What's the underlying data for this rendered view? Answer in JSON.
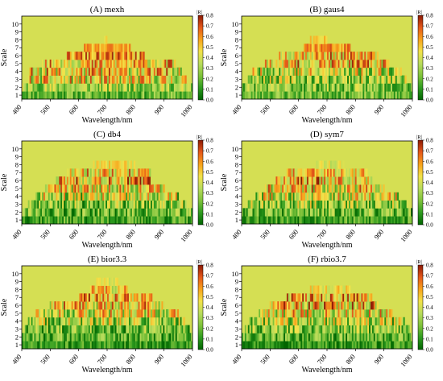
{
  "figure": {
    "colors": {
      "colormap": [
        "#006400",
        "#2e9b1f",
        "#7fc23a",
        "#b8dc5c",
        "#f2e24a",
        "#f7a21b",
        "#e4571a",
        "#8b1a05"
      ],
      "background_level": 0.4
    }
  },
  "chart_data": [
    {
      "type": "heatmap",
      "title": "(A)  mexh",
      "xlabel": "Wavelength/nm",
      "ylabel": "Scale",
      "colorbar_label": "|R|",
      "x_range": [
        400,
        1000
      ],
      "x_ticks": [
        "400",
        "500",
        "600",
        "700",
        "800",
        "900",
        "1000"
      ],
      "y_ticks": [
        "1",
        "2",
        "3",
        "4",
        "5",
        "6",
        "7",
        "8",
        "9",
        "10"
      ],
      "colorbar_ticks": [
        "0.0",
        "0.1",
        "0.2",
        "0.3",
        "0.4",
        "0.5",
        "0.6",
        "0.7",
        "0.8"
      ],
      "colorbar_range": [
        0,
        0.8
      ],
      "row_extent": [
        [
          400,
          1000
        ],
        [
          400,
          1000
        ],
        [
          420,
          980
        ],
        [
          430,
          960
        ],
        [
          470,
          940
        ],
        [
          560,
          830
        ],
        [
          620,
          780
        ],
        [
          690,
          700
        ],
        [
          400,
          400
        ],
        [
          400,
          400
        ]
      ],
      "row_mean": [
        0.2,
        0.3,
        0.42,
        0.47,
        0.5,
        0.58,
        0.55,
        0.45,
        0.4,
        0.4
      ],
      "row_var": [
        0.15,
        0.2,
        0.3,
        0.3,
        0.25,
        0.2,
        0.1,
        0.05,
        0,
        0
      ],
      "seed": 11
    },
    {
      "type": "heatmap",
      "title": "(B)  gaus4",
      "xlabel": "Wavelength/nm",
      "ylabel": "Scale",
      "colorbar_label": "|R|",
      "x_range": [
        400,
        1000
      ],
      "x_ticks": [
        "400",
        "500",
        "600",
        "700",
        "800",
        "900",
        "1000"
      ],
      "y_ticks": [
        "1",
        "2",
        "3",
        "4",
        "5",
        "6",
        "7",
        "8",
        "9",
        "10"
      ],
      "colorbar_ticks": [
        "0.0",
        "0.1",
        "0.2",
        "0.3",
        "0.4",
        "0.5",
        "0.6",
        "0.7",
        "0.8"
      ],
      "colorbar_range": [
        0,
        0.8
      ],
      "row_extent": [
        [
          400,
          1000
        ],
        [
          400,
          1000
        ],
        [
          420,
          980
        ],
        [
          440,
          960
        ],
        [
          480,
          920
        ],
        [
          530,
          880
        ],
        [
          620,
          780
        ],
        [
          640,
          700
        ],
        [
          400,
          400
        ],
        [
          400,
          400
        ]
      ],
      "row_mean": [
        0.22,
        0.25,
        0.3,
        0.38,
        0.5,
        0.52,
        0.58,
        0.48,
        0.4,
        0.4
      ],
      "row_var": [
        0.15,
        0.2,
        0.25,
        0.3,
        0.28,
        0.25,
        0.15,
        0.1,
        0,
        0
      ],
      "seed": 23
    },
    {
      "type": "heatmap",
      "title": "(C)  db4",
      "xlabel": "Wavelength/nm",
      "ylabel": "Scale",
      "colorbar_label": "|R|",
      "x_range": [
        400,
        1000
      ],
      "x_ticks": [
        "400",
        "500",
        "600",
        "700",
        "800",
        "900",
        "1000"
      ],
      "y_ticks": [
        "1",
        "2",
        "3",
        "4",
        "5",
        "6",
        "7",
        "8",
        "9",
        "10"
      ],
      "colorbar_ticks": [
        "0.0",
        "0.1",
        "0.2",
        "0.3",
        "0.4",
        "0.5",
        "0.6",
        "0.7",
        "0.8"
      ],
      "colorbar_range": [
        0,
        0.8
      ],
      "row_extent": [
        [
          400,
          1000
        ],
        [
          400,
          1000
        ],
        [
          420,
          980
        ],
        [
          450,
          950
        ],
        [
          480,
          900
        ],
        [
          520,
          860
        ],
        [
          560,
          850
        ],
        [
          650,
          800
        ],
        [
          400,
          400
        ],
        [
          400,
          400
        ]
      ],
      "row_mean": [
        0.15,
        0.2,
        0.25,
        0.35,
        0.45,
        0.55,
        0.5,
        0.45,
        0.4,
        0.4
      ],
      "row_var": [
        0.15,
        0.2,
        0.25,
        0.3,
        0.3,
        0.3,
        0.25,
        0.1,
        0,
        0
      ],
      "seed": 37
    },
    {
      "type": "heatmap",
      "title": "(D)  sym7",
      "xlabel": "Wavelength/nm",
      "ylabel": "Scale",
      "colorbar_label": "|R|",
      "x_range": [
        400,
        1000
      ],
      "x_ticks": [
        "400",
        "500",
        "600",
        "700",
        "800",
        "900",
        "1000"
      ],
      "y_ticks": [
        "1",
        "2",
        "3",
        "4",
        "5",
        "6",
        "7",
        "8",
        "9",
        "10"
      ],
      "colorbar_ticks": [
        "0.0",
        "0.1",
        "0.2",
        "0.3",
        "0.4",
        "0.5",
        "0.6",
        "0.7",
        "0.8"
      ],
      "colorbar_range": [
        0,
        0.8
      ],
      "row_extent": [
        [
          400,
          1000
        ],
        [
          400,
          1000
        ],
        [
          420,
          980
        ],
        [
          450,
          950
        ],
        [
          480,
          900
        ],
        [
          520,
          860
        ],
        [
          560,
          840
        ],
        [
          660,
          760
        ],
        [
          400,
          400
        ],
        [
          400,
          400
        ]
      ],
      "row_mean": [
        0.15,
        0.2,
        0.28,
        0.38,
        0.45,
        0.55,
        0.5,
        0.42,
        0.4,
        0.4
      ],
      "row_var": [
        0.15,
        0.2,
        0.25,
        0.3,
        0.3,
        0.3,
        0.2,
        0.1,
        0,
        0
      ],
      "seed": 53
    },
    {
      "type": "heatmap",
      "title": "(E)  bior3.3",
      "xlabel": "Wavelength/nm",
      "ylabel": "Scale",
      "colorbar_label": "|R|",
      "x_range": [
        400,
        1000
      ],
      "x_ticks": [
        "400",
        "500",
        "600",
        "700",
        "800",
        "900",
        "1000"
      ],
      "y_ticks": [
        "1",
        "2",
        "3",
        "4",
        "5",
        "6",
        "7",
        "8",
        "9",
        "10"
      ],
      "colorbar_ticks": [
        "0.0",
        "0.1",
        "0.2",
        "0.3",
        "0.4",
        "0.5",
        "0.6",
        "0.7",
        "0.8"
      ],
      "colorbar_range": [
        0,
        0.8
      ],
      "row_extent": [
        [
          400,
          1000
        ],
        [
          400,
          1000
        ],
        [
          410,
          990
        ],
        [
          420,
          970
        ],
        [
          450,
          950
        ],
        [
          500,
          900
        ],
        [
          600,
          860
        ],
        [
          640,
          770
        ],
        [
          660,
          740
        ],
        [
          400,
          400
        ]
      ],
      "row_mean": [
        0.12,
        0.18,
        0.22,
        0.3,
        0.4,
        0.5,
        0.55,
        0.48,
        0.42,
        0.4
      ],
      "row_var": [
        0.12,
        0.18,
        0.22,
        0.28,
        0.3,
        0.3,
        0.25,
        0.2,
        0.08,
        0
      ],
      "seed": 71
    },
    {
      "type": "heatmap",
      "title": "(F)  rbio3.7",
      "xlabel": "Wavelength/nm",
      "ylabel": "Scale",
      "colorbar_label": "|R|",
      "x_range": [
        400,
        1000
      ],
      "x_ticks": [
        "400",
        "500",
        "600",
        "700",
        "800",
        "900",
        "1000"
      ],
      "y_ticks": [
        "1",
        "2",
        "3",
        "4",
        "5",
        "6",
        "7",
        "8",
        "9",
        "10"
      ],
      "colorbar_ticks": [
        "0.0",
        "0.1",
        "0.2",
        "0.3",
        "0.4",
        "0.5",
        "0.6",
        "0.7",
        "0.8"
      ],
      "colorbar_range": [
        0,
        0.8
      ],
      "row_extent": [
        [
          400,
          1000
        ],
        [
          400,
          1000
        ],
        [
          410,
          990
        ],
        [
          430,
          970
        ],
        [
          460,
          930
        ],
        [
          500,
          880
        ],
        [
          560,
          860
        ],
        [
          640,
          780
        ],
        [
          400,
          400
        ],
        [
          400,
          400
        ]
      ],
      "row_mean": [
        0.12,
        0.18,
        0.25,
        0.32,
        0.42,
        0.52,
        0.55,
        0.45,
        0.4,
        0.4
      ],
      "row_var": [
        0.12,
        0.18,
        0.22,
        0.28,
        0.3,
        0.3,
        0.25,
        0.12,
        0,
        0
      ],
      "seed": 97
    }
  ]
}
